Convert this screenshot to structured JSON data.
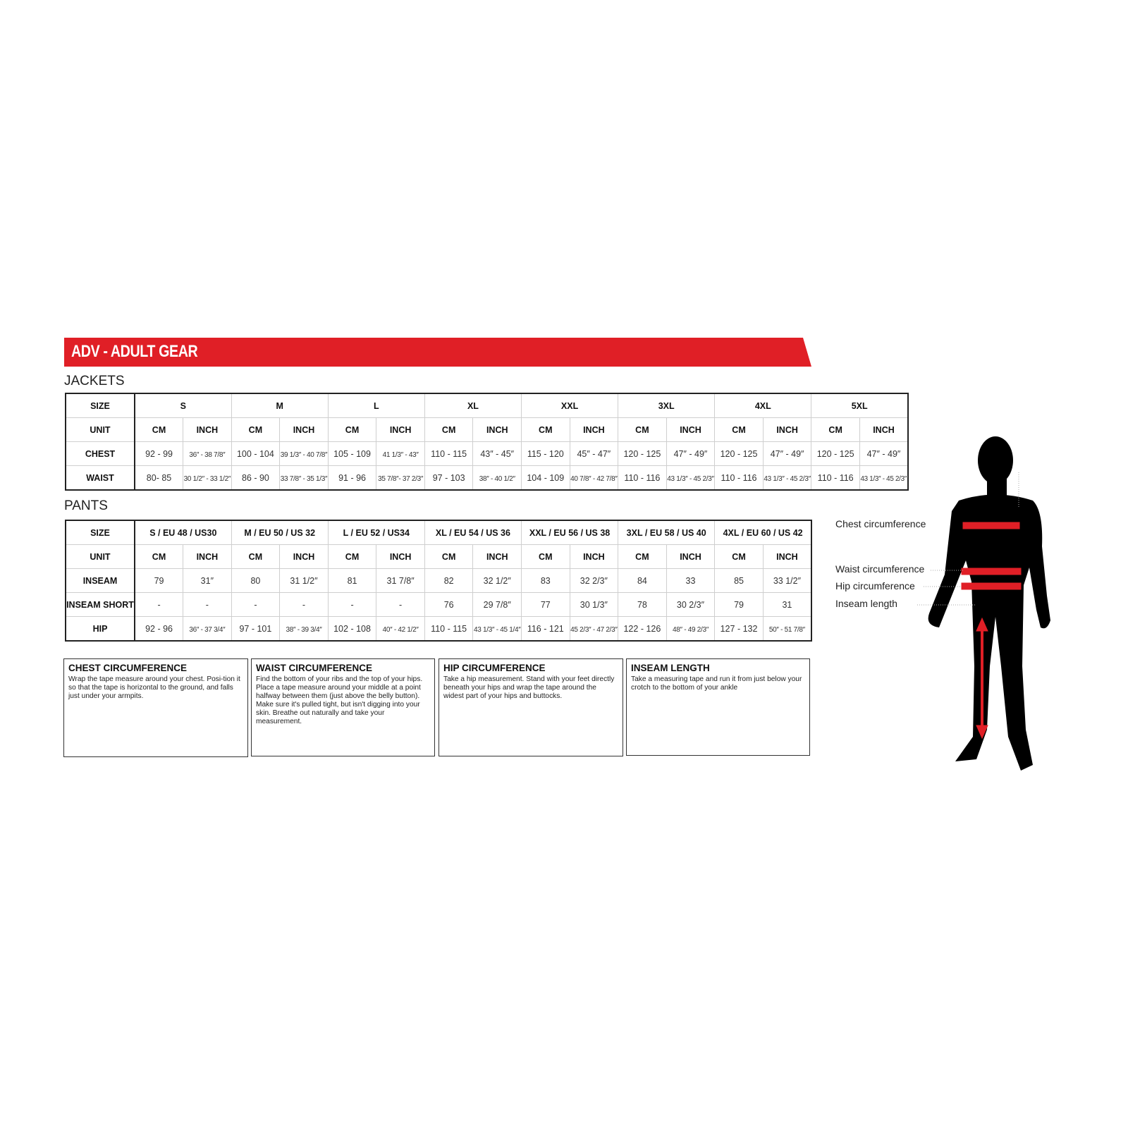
{
  "header": {
    "title": "ADV - ADULT GEAR",
    "accent_color": "#e01f26"
  },
  "jackets": {
    "title": "JACKETS",
    "size_label": "SIZE",
    "unit_label": "UNIT",
    "sizes": [
      "S",
      "M",
      "L",
      "XL",
      "XXL",
      "3XL",
      "4XL",
      "5XL"
    ],
    "units": [
      "CM",
      "INCH"
    ],
    "rows": [
      {
        "label": "CHEST",
        "values": [
          "92 - 99",
          "36″ - 38 7/8″",
          "100 - 104",
          "39 1/3″ - 40 7/8″",
          "105 - 109",
          "41 1/3″ - 43″",
          "110 - 115",
          "43″ - 45″",
          "115 - 120",
          "45″ - 47″",
          "120 - 125",
          "47″ - 49″",
          "120 - 125",
          "47″ - 49″",
          "120 - 125",
          "47″ - 49″"
        ]
      },
      {
        "label": "WAIST",
        "values": [
          "80- 85",
          "30 1/2″ - 33 1/2″",
          "86 - 90",
          "33 7/8″ - 35 1/3″",
          "91 - 96",
          "35 7/8″- 37 2/3″",
          "97 - 103",
          "38″ - 40 1/2″",
          "104 - 109",
          "40 7/8″ - 42 7/8″",
          "110 - 116",
          "43 1/3″ - 45 2/3″",
          "110 - 116",
          "43 1/3″ - 45 2/3″",
          "110 - 116",
          "43 1/3″ - 45 2/3″"
        ]
      }
    ]
  },
  "pants": {
    "title": "PANTS",
    "size_label": "SIZE",
    "unit_label": "UNIT",
    "sizes": [
      "S / EU 48 / US30",
      "M / EU 50 / US 32",
      "L / EU 52 / US34",
      "XL / EU 54 / US 36",
      "XXL / EU 56 / US 38",
      "3XL / EU 58 / US 40",
      "4XL / EU 60 / US 42"
    ],
    "units": [
      "CM",
      "INCH"
    ],
    "rows": [
      {
        "label": "INSEAM",
        "values": [
          "79",
          "31″",
          "80",
          "31 1/2″",
          "81",
          "31 7/8″",
          "82",
          "32 1/2″",
          "83",
          "32 2/3″",
          "84",
          "33",
          "85",
          "33 1/2″"
        ]
      },
      {
        "label": "INSEAM SHORT",
        "values": [
          "-",
          "-",
          "-",
          "-",
          "-",
          "-",
          "76",
          "29 7/8″",
          "77",
          "30 1/3″",
          "78",
          "30 2/3″",
          "79",
          "31"
        ]
      },
      {
        "label": "HIP",
        "values": [
          "92 - 96",
          "36″ - 37 3/4″",
          "97 - 101",
          "38″ - 39 3/4″",
          "102 - 108",
          "40″ - 42 1/2″",
          "110 - 115",
          "43 1/3″ - 45 1/4″",
          "116 - 121",
          "45 2/3″ - 47 2/3″",
          "122 - 126",
          "48″ - 49 2/3″",
          "127 - 132",
          "50″ - 51 7/8″"
        ]
      }
    ]
  },
  "guides": [
    {
      "title": "CHEST CIRCUMFERENCE",
      "text": "Wrap the tape measure around your chest. Posi-tion it so that the tape is horizontal to the ground, and falls just under your armpits."
    },
    {
      "title": "WAIST CIRCUMFERENCE",
      "text": "Find the bottom of your ribs and the top of your hips. Place a tape measure around your middle at a point halfway between them (just above the belly button). Make sure it's pulled tight, but isn't digging into your skin. Breathe out naturally and take your measurement."
    },
    {
      "title": "HIP CIRCUMFERENCE",
      "text": "Take a hip measurement. Stand with your feet directly beneath your hips and wrap the tape around the widest part of your hips and buttocks."
    },
    {
      "title": "INSEAM LENGTH",
      "text": "Take a measuring tape and run it from just below your crotch to the bottom of your ankle"
    }
  ],
  "figure": {
    "labels": {
      "chest": "Chest circumference",
      "waist": "Waist circumference",
      "hip": "Hip circumference",
      "inseam": "Inseam length"
    },
    "silhouette_color": "#000000",
    "marker_color": "#e01f26"
  }
}
